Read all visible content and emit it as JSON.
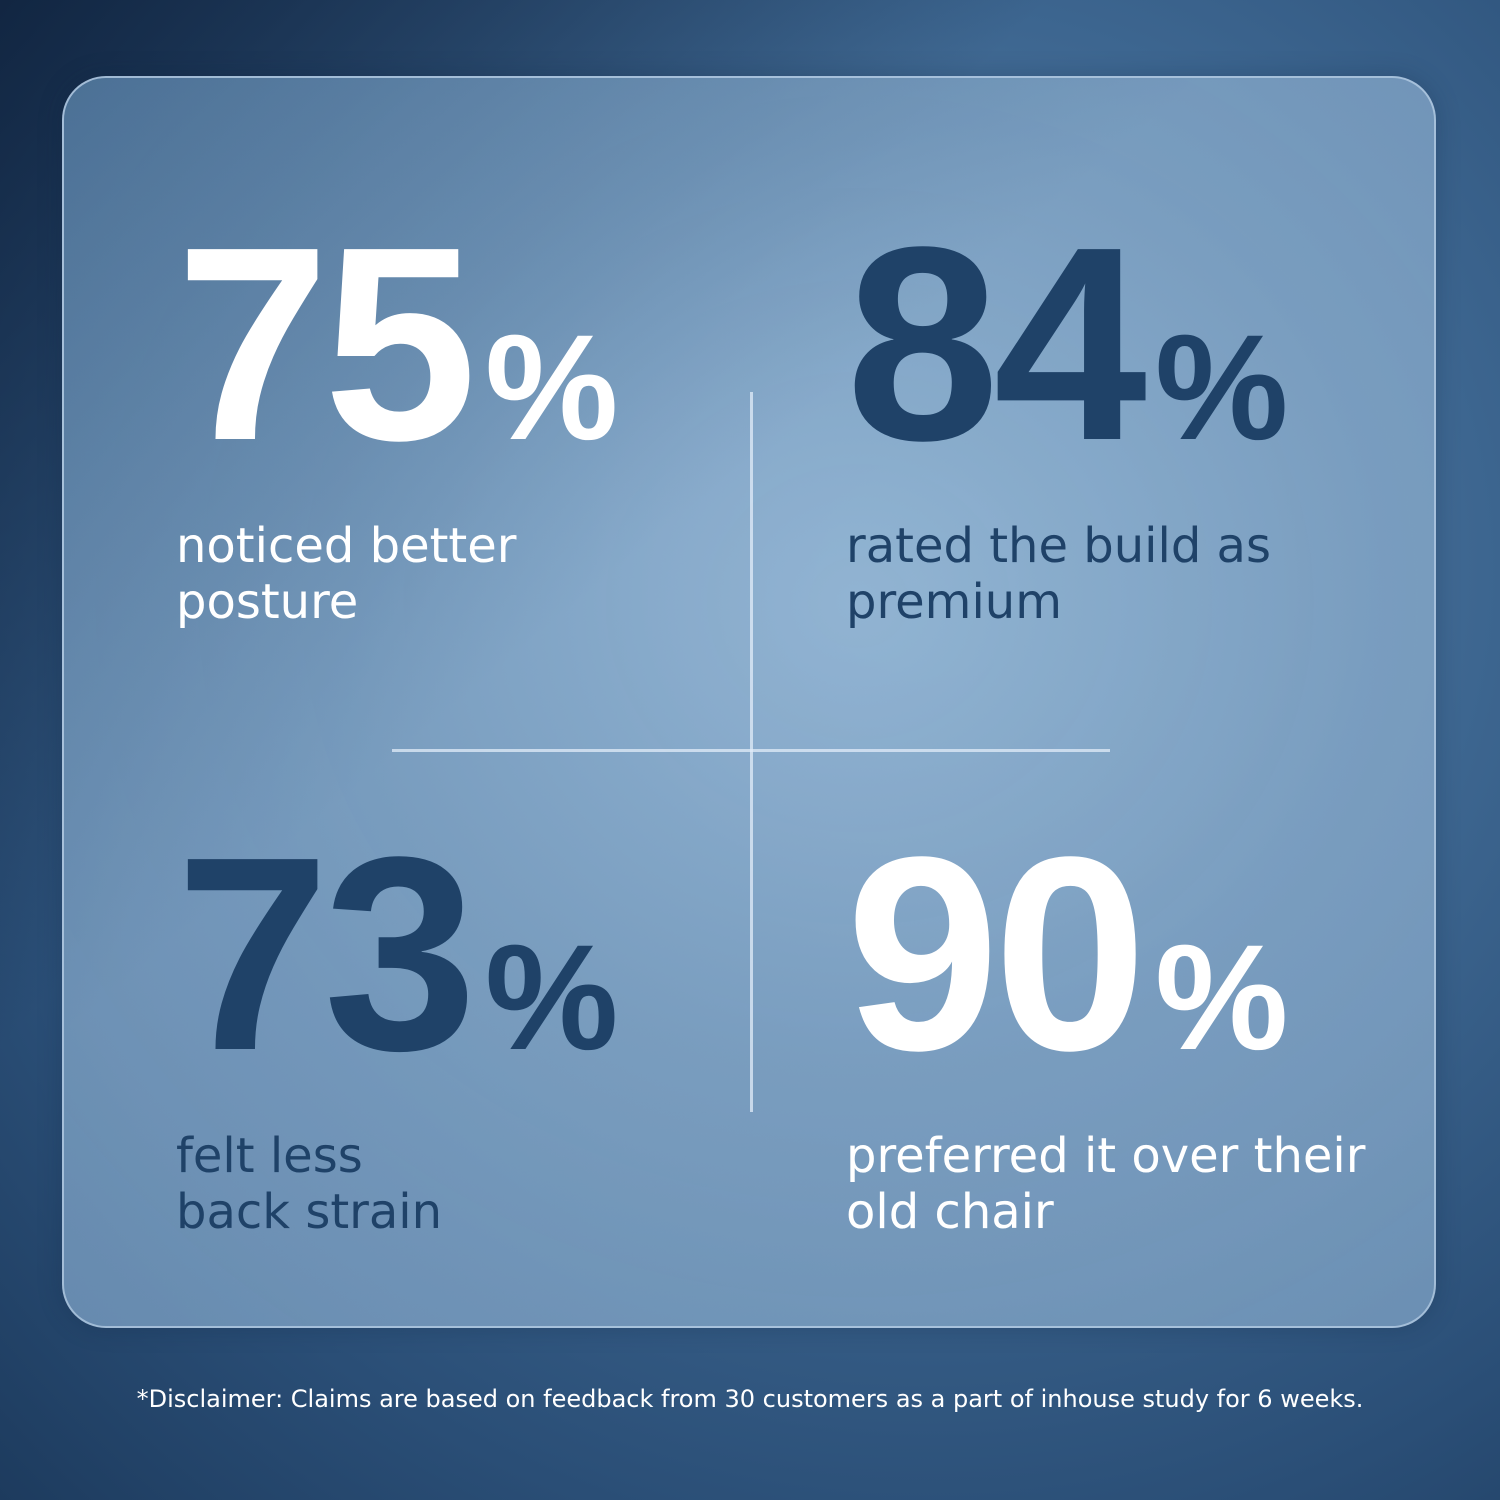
{
  "stats": [
    {
      "value": "75",
      "unit": "%",
      "label_line1": "noticed better",
      "label_line2": "posture"
    },
    {
      "value": "84",
      "unit": "%",
      "label_line1": "rated the build as",
      "label_line2": "premium"
    },
    {
      "value": "73",
      "unit": "%",
      "label_line1": "felt less",
      "label_line2": "back strain"
    },
    {
      "value": "90",
      "unit": "%",
      "label_line1": "preferred it over their",
      "label_line2": "old chair"
    }
  ],
  "colors": {
    "light_text": "#ffffff",
    "dark_text": "#1f4268",
    "background": "#2a4e76",
    "card": "#85a6c6"
  },
  "disclaimer": "*Disclaimer: Claims are based on feedback from 30 customers as a part of inhouse study for 6 weeks."
}
